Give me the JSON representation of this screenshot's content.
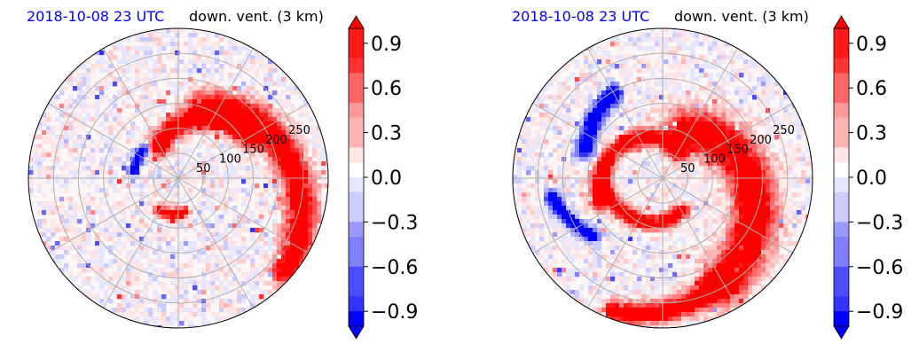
{
  "chart_data": [
    {
      "type": "heatmap",
      "projection": "polar",
      "title_left": "2018-10-08 23 UTC",
      "title_right": "down. vent. (3 km)",
      "title_left_color": "#0000ff",
      "radial_ticks": [
        "50",
        "100",
        "150",
        "200",
        "250"
      ],
      "colorbar": {
        "range": [
          -1.0,
          1.0
        ],
        "ticks": [
          "0.9",
          "0.6",
          "0.3",
          "0.0",
          "−0.3",
          "−0.6",
          "−0.9"
        ],
        "cmap": "bwr",
        "extend": "both"
      },
      "features": [
        {
          "kind": "band",
          "sign": 1,
          "start_deg": 70,
          "end_deg": -40,
          "r0": 0.5,
          "r1": 0.95,
          "width": 0.14
        },
        {
          "kind": "band",
          "sign": 1,
          "start_deg": 120,
          "end_deg": 30,
          "r0": 0.25,
          "r1": 0.55,
          "width": 0.1
        },
        {
          "kind": "band",
          "sign": 1,
          "start_deg": -80,
          "end_deg": -120,
          "r0": 0.23,
          "r1": 0.25,
          "width": 0.05
        },
        {
          "kind": "band",
          "sign": -1,
          "start_deg": 170,
          "end_deg": 140,
          "r0": 0.3,
          "r1": 0.3,
          "width": 0.05
        }
      ]
    },
    {
      "type": "heatmap",
      "projection": "polar",
      "title_left": "2018-10-08 23 UTC",
      "title_right": "down. vent. (3 km)",
      "title_left_color": "#0000ff",
      "radial_ticks": [
        "50",
        "100",
        "150",
        "200",
        "250"
      ],
      "colorbar": {
        "range": [
          -1.0,
          1.0
        ],
        "ticks": [
          "0.9",
          "0.6",
          "0.3",
          "0.0",
          "−0.3",
          "−0.6",
          "−0.9"
        ],
        "cmap": "bwr",
        "extend": "both"
      },
      "features": [
        {
          "kind": "band",
          "sign": 1,
          "start_deg": 60,
          "end_deg": -60,
          "r0": 0.35,
          "r1": 0.8,
          "width": 0.2
        },
        {
          "kind": "band",
          "sign": 1,
          "start_deg": -60,
          "end_deg": -110,
          "r0": 0.8,
          "r1": 0.95,
          "width": 0.1
        },
        {
          "kind": "band",
          "sign": 1,
          "start_deg": 200,
          "end_deg": 60,
          "r0": 0.45,
          "r1": 0.2,
          "width": 0.08
        },
        {
          "kind": "band",
          "sign": 1,
          "start_deg": 300,
          "end_deg": 180,
          "r0": 0.25,
          "r1": 0.4,
          "width": 0.07
        },
        {
          "kind": "band",
          "sign": -1,
          "start_deg": 160,
          "end_deg": 120,
          "r0": 0.55,
          "r1": 0.65,
          "width": 0.08
        },
        {
          "kind": "band",
          "sign": -1,
          "start_deg": 220,
          "end_deg": 190,
          "r0": 0.6,
          "r1": 0.75,
          "width": 0.06
        }
      ]
    }
  ]
}
